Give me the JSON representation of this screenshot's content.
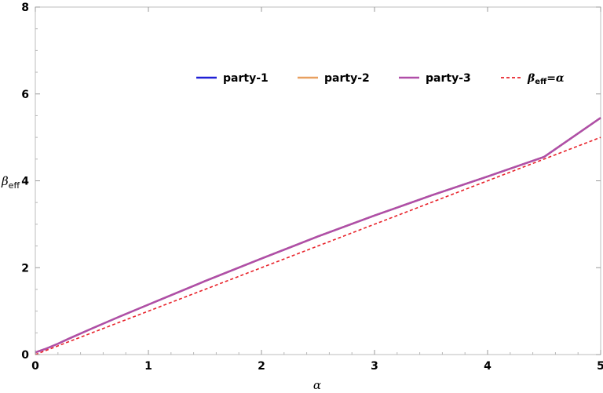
{
  "chart_data": {
    "type": "line",
    "xlabel": "α",
    "ylabel_main": "β",
    "ylabel_sub": "eff",
    "xlim": [
      0,
      5
    ],
    "ylim": [
      0,
      8
    ],
    "x_ticks": [
      0,
      1,
      2,
      3,
      4,
      5
    ],
    "y_ticks": [
      0,
      2,
      4,
      6,
      8
    ],
    "grid": false,
    "legend_position": "top-center",
    "series": [
      {
        "name": "party-1",
        "color": "#1f1fd6",
        "style": "solid",
        "x": [
          0,
          0.1,
          0.2,
          0.3,
          0.5,
          0.75,
          1.0,
          1.25,
          1.5,
          2.0,
          2.5,
          3.0,
          3.5,
          4.0,
          4.5,
          5.0
        ],
        "y": [
          0.05,
          0.14,
          0.25,
          0.37,
          0.6,
          0.88,
          1.15,
          1.42,
          1.69,
          2.21,
          2.72,
          3.2,
          3.66,
          4.1,
          4.55,
          5.45
        ]
      },
      {
        "name": "party-2",
        "color": "#e8a060",
        "style": "solid",
        "x": [
          0,
          0.1,
          0.2,
          0.3,
          0.5,
          0.75,
          1.0,
          1.25,
          1.5,
          2.0,
          2.5,
          3.0,
          3.5,
          4.0,
          4.5,
          5.0
        ],
        "y": [
          0.05,
          0.14,
          0.25,
          0.37,
          0.6,
          0.88,
          1.15,
          1.42,
          1.69,
          2.21,
          2.72,
          3.2,
          3.66,
          4.1,
          4.55,
          5.45
        ]
      },
      {
        "name": "party-3",
        "color": "#b04ea8",
        "style": "solid",
        "x": [
          0,
          0.1,
          0.2,
          0.3,
          0.5,
          0.75,
          1.0,
          1.25,
          1.5,
          2.0,
          2.5,
          3.0,
          3.5,
          4.0,
          4.5,
          5.0
        ],
        "y": [
          0.05,
          0.14,
          0.25,
          0.37,
          0.6,
          0.88,
          1.15,
          1.42,
          1.69,
          2.21,
          2.72,
          3.2,
          3.66,
          4.1,
          4.55,
          5.45
        ]
      },
      {
        "name": "βeff=α",
        "legend_main": "β",
        "legend_sub": "eff",
        "legend_tail": "=α",
        "color": "#e8222a",
        "style": "dashed",
        "x": [
          0,
          5
        ],
        "y": [
          0,
          5
        ]
      }
    ]
  }
}
